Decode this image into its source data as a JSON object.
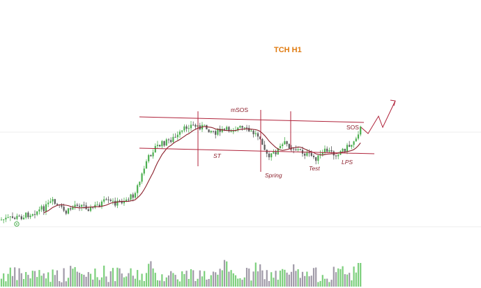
{
  "chart_data": {
    "type": "candlestick",
    "title": "TCH H1",
    "annotations": [
      "mSOS",
      "ST",
      "Spring",
      "Test",
      "LPS",
      "SOS"
    ],
    "colors": {
      "up": "#4caf50",
      "down": "#5a5a5a",
      "ma": "#8b1f2b",
      "lines": "#b0223a",
      "title": "#e07b10",
      "volume_up": "#7ccf7c",
      "volume_down": "#a09aa8"
    },
    "grid": false,
    "legend": "none",
    "indicator_icon": "circle-dot-icon"
  }
}
